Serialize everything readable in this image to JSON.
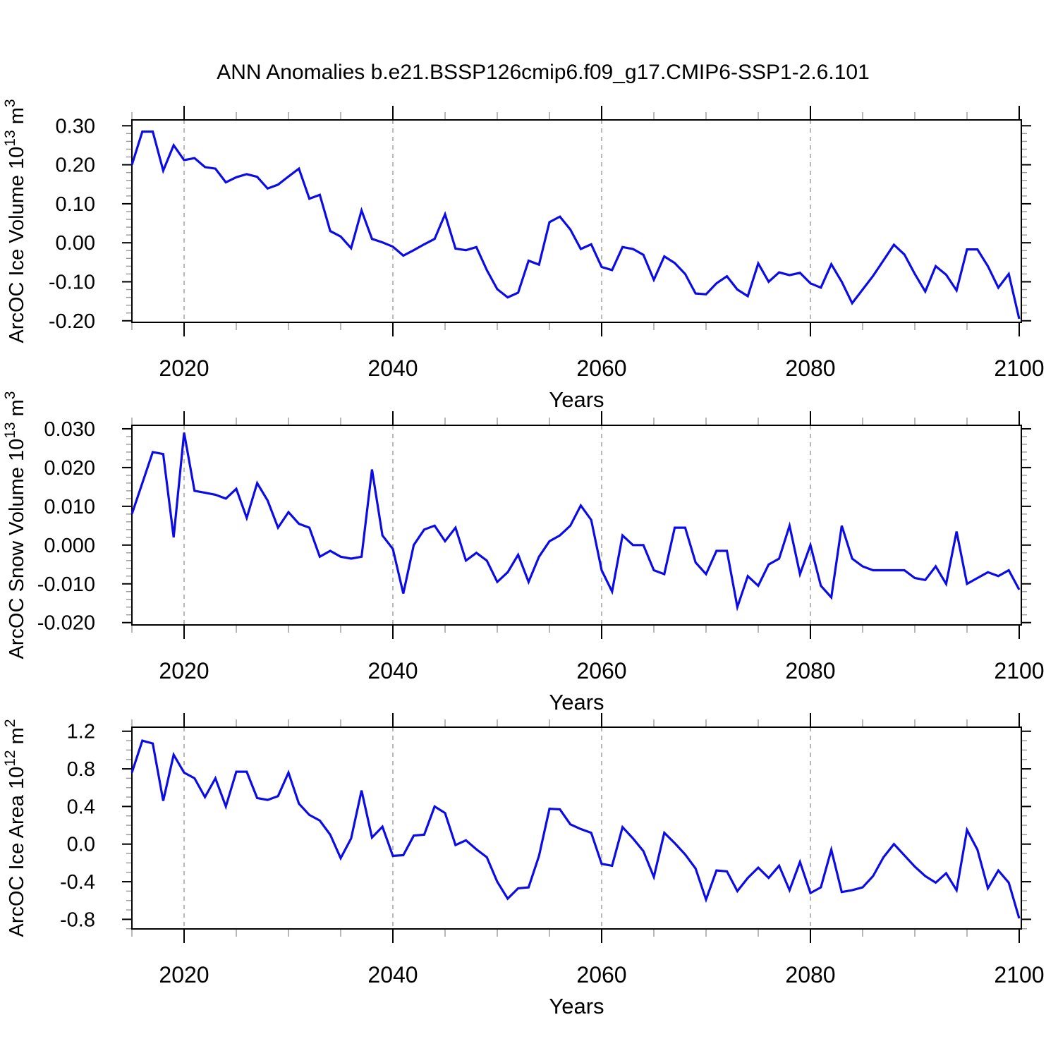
{
  "title": "ANN Anomalies b.e21.BSSP126cmip6.f09_g17.CMIP6-SSP1-2.6.101",
  "line_color": "#0b0be8",
  "grid_color": "#888888",
  "axis_color": "#000000",
  "minor_tick_color": "#999999",
  "xlabel": "Years",
  "chart_data": [
    {
      "id": "ice-volume",
      "type": "line",
      "x_start": 2015,
      "x_step": 1,
      "xlabel": "Years",
      "ylabel_parts": [
        {
          "text": "ArcOC Ice Volume 10"
        },
        {
          "text": "13",
          "sup": true
        },
        {
          "text": " m"
        },
        {
          "text": "3",
          "sup": true
        }
      ],
      "ylim": [
        -0.204,
        0.315
      ],
      "yticks": [
        0.3,
        0.2,
        0.1,
        0.0,
        -0.1,
        -0.2
      ],
      "ytick_labels": [
        "0.30",
        "0.20",
        "0.10",
        "0.00",
        "-0.10",
        "-0.20"
      ],
      "y_minor_step": 0.02,
      "xlim": [
        2015,
        2100
      ],
      "xticks": [
        2020,
        2040,
        2060,
        2080,
        2100
      ],
      "xtick_labels": [
        "2020",
        "2040",
        "2060",
        "2080",
        "2100"
      ],
      "x_minor_step": 5,
      "gridlines_x": [
        2020,
        2040,
        2060,
        2080
      ],
      "values": [
        0.2,
        0.285,
        0.285,
        0.185,
        0.25,
        0.212,
        0.217,
        0.194,
        0.19,
        0.155,
        0.168,
        0.176,
        0.169,
        0.139,
        0.149,
        0.17,
        0.19,
        0.113,
        0.123,
        0.03,
        0.016,
        -0.014,
        0.083,
        0.01,
        0.001,
        -0.01,
        -0.033,
        -0.019,
        -0.004,
        0.01,
        0.073,
        -0.015,
        -0.019,
        -0.011,
        -0.07,
        -0.119,
        -0.14,
        -0.128,
        -0.046,
        -0.056,
        0.053,
        0.067,
        0.034,
        -0.016,
        -0.004,
        -0.062,
        -0.07,
        -0.011,
        -0.016,
        -0.031,
        -0.095,
        -0.035,
        -0.052,
        -0.08,
        -0.13,
        -0.132,
        -0.104,
        -0.086,
        -0.12,
        -0.137,
        -0.053,
        -0.1,
        -0.076,
        -0.083,
        -0.077,
        -0.104,
        -0.115,
        -0.055,
        -0.1,
        -0.155,
        -0.12,
        -0.085,
        -0.045,
        -0.005,
        -0.03,
        -0.08,
        -0.125,
        -0.06,
        -0.082,
        -0.122,
        -0.017,
        -0.017,
        -0.06,
        -0.115,
        -0.08,
        -0.195
      ]
    },
    {
      "id": "snow-volume",
      "type": "line",
      "x_start": 2015,
      "x_step": 1,
      "xlabel": "Years",
      "ylabel_parts": [
        {
          "text": "ArcOC Snow Volume 10"
        },
        {
          "text": "13",
          "sup": true
        },
        {
          "text": " m"
        },
        {
          "text": "3",
          "sup": true
        }
      ],
      "ylim": [
        -0.0206,
        0.0309
      ],
      "yticks": [
        0.03,
        0.02,
        0.01,
        0.0,
        -0.01,
        -0.02
      ],
      "ytick_labels": [
        "0.030",
        "0.020",
        "0.010",
        "0.000",
        "-0.010",
        "-0.020"
      ],
      "y_minor_step": 0.002,
      "xlim": [
        2015,
        2100
      ],
      "xticks": [
        2020,
        2040,
        2060,
        2080,
        2100
      ],
      "xtick_labels": [
        "2020",
        "2040",
        "2060",
        "2080",
        "2100"
      ],
      "x_minor_step": 5,
      "gridlines_x": [
        2020,
        2040,
        2060,
        2080
      ],
      "values": [
        0.008,
        0.016,
        0.024,
        0.0235,
        0.002,
        0.029,
        0.014,
        0.0135,
        0.013,
        0.012,
        0.0145,
        0.007,
        0.016,
        0.0115,
        0.0045,
        0.0085,
        0.0055,
        0.0045,
        -0.003,
        -0.0015,
        -0.003,
        -0.0035,
        -0.003,
        0.0195,
        0.0025,
        -0.001,
        -0.0125,
        0.0,
        0.004,
        0.005,
        0.001,
        0.0045,
        -0.004,
        -0.002,
        -0.004,
        -0.0095,
        -0.007,
        -0.0025,
        -0.0095,
        -0.003,
        0.001,
        0.0025,
        0.005,
        0.0102,
        0.0065,
        -0.0065,
        -0.012,
        0.0025,
        0.0,
        0.0,
        -0.0065,
        -0.0075,
        0.0045,
        0.0045,
        -0.0045,
        -0.0075,
        -0.0015,
        -0.0015,
        -0.016,
        -0.008,
        -0.0105,
        -0.005,
        -0.0035,
        0.005,
        -0.0075,
        0.0,
        -0.0105,
        -0.0135,
        0.005,
        -0.0035,
        -0.0055,
        -0.0065,
        -0.0065,
        -0.0065,
        -0.0065,
        -0.0085,
        -0.009,
        -0.0055,
        -0.01,
        0.0035,
        -0.01,
        -0.0085,
        -0.007,
        -0.008,
        -0.0065,
        -0.0115
      ]
    },
    {
      "id": "ice-area",
      "type": "line",
      "x_start": 2015,
      "x_step": 1,
      "xlabel": "Years",
      "ylabel_parts": [
        {
          "text": "ArcOC Ice Area 10"
        },
        {
          "text": "12",
          "sup": true
        },
        {
          "text": " m"
        },
        {
          "text": "2",
          "sup": true
        }
      ],
      "ylim": [
        -0.902,
        1.243
      ],
      "yticks": [
        1.2,
        0.8,
        0.4,
        0.0,
        -0.4,
        -0.8
      ],
      "ytick_labels": [
        "1.2",
        "0.8",
        "0.4",
        "0.0",
        "-0.4",
        "-0.8"
      ],
      "y_minor_step": 0.1,
      "xlim": [
        2015,
        2100
      ],
      "xticks": [
        2020,
        2040,
        2060,
        2080,
        2100
      ],
      "xtick_labels": [
        "2020",
        "2040",
        "2060",
        "2080",
        "2100"
      ],
      "x_minor_step": 5,
      "gridlines_x": [
        2020,
        2040,
        2060,
        2080
      ],
      "values": [
        0.76,
        1.1,
        1.07,
        0.46,
        0.95,
        0.76,
        0.7,
        0.5,
        0.7,
        0.4,
        0.77,
        0.77,
        0.49,
        0.47,
        0.51,
        0.76,
        0.43,
        0.31,
        0.25,
        0.1,
        -0.15,
        0.06,
        0.57,
        0.07,
        0.185,
        -0.125,
        -0.118,
        0.09,
        0.1,
        0.4,
        0.33,
        -0.01,
        0.04,
        -0.055,
        -0.14,
        -0.4,
        -0.58,
        -0.47,
        -0.46,
        -0.125,
        0.375,
        0.37,
        0.21,
        0.16,
        0.12,
        -0.21,
        -0.23,
        0.18,
        0.06,
        -0.075,
        -0.35,
        0.12,
        0.01,
        -0.11,
        -0.26,
        -0.59,
        -0.28,
        -0.29,
        -0.5,
        -0.36,
        -0.25,
        -0.36,
        -0.23,
        -0.49,
        -0.19,
        -0.52,
        -0.46,
        -0.06,
        -0.51,
        -0.49,
        -0.46,
        -0.34,
        -0.14,
        0.0,
        -0.12,
        -0.24,
        -0.34,
        -0.41,
        -0.31,
        -0.49,
        0.15,
        -0.06,
        -0.47,
        -0.28,
        -0.41,
        -0.79
      ]
    }
  ]
}
